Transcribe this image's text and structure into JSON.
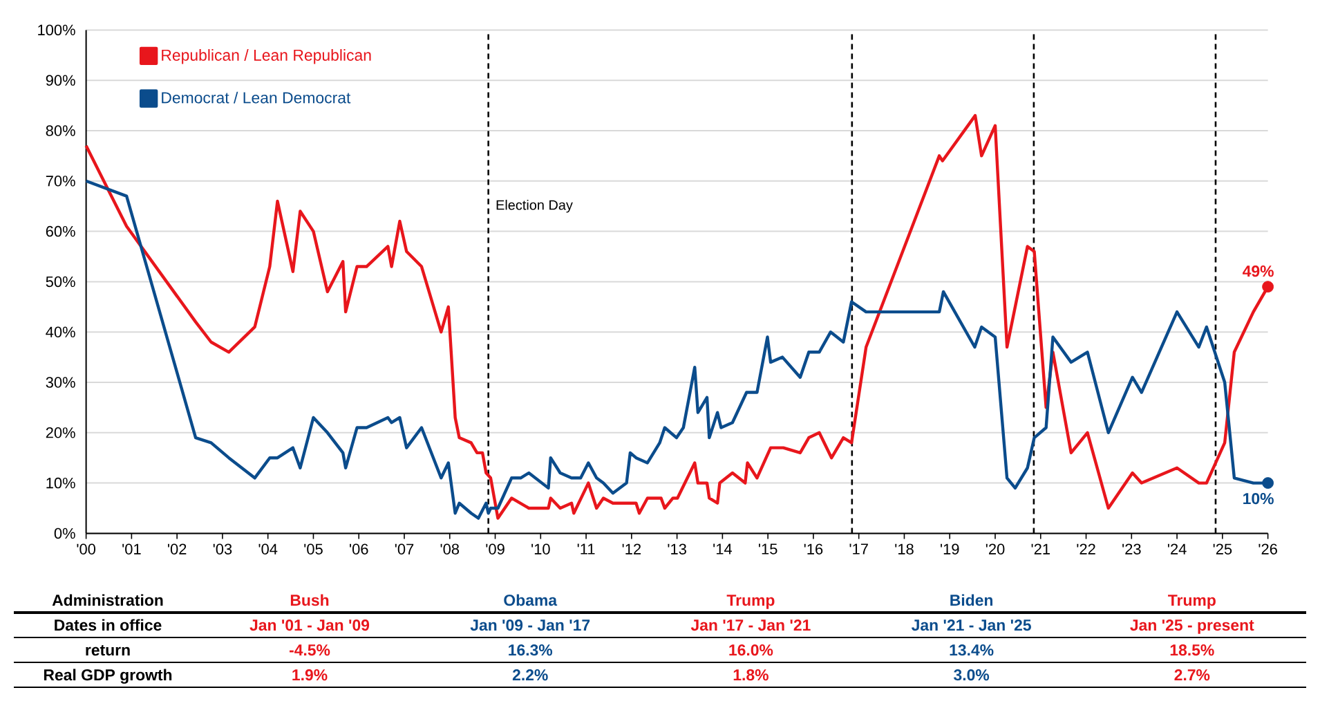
{
  "chart_data": {
    "type": "line",
    "series": [
      {
        "name": "Republican / Lean Republican",
        "color": "#e8161c",
        "x": [
          2000.0,
          2000.89,
          2002.41,
          2002.75,
          2003.14,
          2003.71,
          2004.04,
          2004.21,
          2004.55,
          2004.71,
          2005.0,
          2005.31,
          2005.65,
          2005.71,
          2005.96,
          2006.17,
          2006.64,
          2006.72,
          2006.9,
          2007.05,
          2007.38,
          2007.81,
          2007.97,
          2008.12,
          2008.21,
          2008.47,
          2008.6,
          2008.72,
          2008.8,
          2008.9,
          2009.06,
          2009.36,
          2009.74,
          2010.17,
          2010.22,
          2010.43,
          2010.68,
          2010.73,
          2011.05,
          2011.23,
          2011.38,
          2011.59,
          2012.1,
          2012.17,
          2012.35,
          2012.65,
          2012.73,
          2012.91,
          2013.01,
          2013.39,
          2013.46,
          2013.66,
          2013.71,
          2013.89,
          2013.94,
          2014.22,
          2014.5,
          2014.55,
          2014.76,
          2014.96,
          2015.06,
          2015.34,
          2015.71,
          2015.9,
          2016.13,
          2016.4,
          2016.66,
          2016.84,
          2017.16,
          2018.77,
          2018.84,
          2019.56,
          2019.7,
          2020.0,
          2020.26,
          2020.71,
          2020.86,
          2021.12,
          2021.27,
          2021.67,
          2022.03,
          2022.49,
          2023.02,
          2023.22,
          2024.0,
          2024.48,
          2024.65,
          2025.05,
          2025.26,
          2025.68,
          2026.0
        ],
        "values": [
          77,
          61,
          42,
          38,
          36,
          41,
          53,
          66,
          52,
          64,
          60,
          48,
          54,
          44,
          53,
          53,
          57,
          53,
          62,
          56,
          53,
          40,
          45,
          23,
          19,
          18,
          16,
          16,
          12,
          11,
          3,
          7,
          5,
          5,
          7,
          5,
          6,
          4,
          10,
          5,
          7,
          6,
          6,
          4,
          7,
          7,
          5,
          7,
          7,
          14,
          10,
          10,
          7,
          6,
          10,
          12,
          10,
          14,
          11,
          15,
          17,
          17,
          16,
          19,
          20,
          15,
          19,
          18,
          37,
          75,
          74,
          83,
          75,
          81,
          37,
          57,
          56,
          25,
          36,
          16,
          20,
          5,
          12,
          10,
          13,
          10,
          10,
          18,
          36,
          44,
          49
        ],
        "value_labels": [
          null,
          null,
          null,
          null,
          null,
          null,
          null,
          null,
          null,
          null,
          null,
          null,
          null,
          null,
          null,
          null,
          null,
          null,
          null,
          null,
          null,
          null,
          null,
          null,
          null,
          null,
          null,
          null,
          null,
          null,
          null,
          null,
          null,
          null,
          null,
          null,
          null,
          null,
          null,
          null,
          null,
          null,
          null,
          null,
          null,
          null,
          null,
          null,
          null,
          null,
          null,
          null,
          null,
          null,
          null,
          null,
          null,
          null,
          null,
          null,
          null,
          null,
          null,
          null,
          null,
          null,
          null,
          null,
          null,
          null,
          null,
          null,
          null,
          null,
          null,
          null,
          null,
          null,
          null,
          null,
          null,
          null,
          null,
          null,
          null,
          null,
          null,
          null,
          null,
          null,
          "49%"
        ]
      },
      {
        "name": "Democrat / Lean Democrat",
        "color": "#0b4c8c",
        "x": [
          2000.0,
          2000.89,
          2002.41,
          2002.75,
          2003.14,
          2003.71,
          2004.04,
          2004.21,
          2004.55,
          2004.71,
          2005.0,
          2005.31,
          2005.65,
          2005.71,
          2005.96,
          2006.17,
          2006.64,
          2006.72,
          2006.9,
          2007.05,
          2007.38,
          2007.81,
          2007.97,
          2008.12,
          2008.21,
          2008.47,
          2008.63,
          2008.8,
          2008.85,
          2008.9,
          2009.06,
          2009.36,
          2009.56,
          2009.74,
          2010.17,
          2010.22,
          2010.43,
          2010.68,
          2010.88,
          2011.05,
          2011.23,
          2011.38,
          2011.59,
          2011.89,
          2011.97,
          2012.1,
          2012.35,
          2012.62,
          2012.73,
          2012.99,
          2013.14,
          2013.39,
          2013.46,
          2013.66,
          2013.71,
          2013.89,
          2013.97,
          2014.22,
          2014.53,
          2014.76,
          2014.99,
          2015.06,
          2015.32,
          2015.71,
          2015.9,
          2016.13,
          2016.38,
          2016.66,
          2016.84,
          2017.16,
          2018.77,
          2018.86,
          2019.55,
          2019.7,
          2020.0,
          2020.26,
          2020.44,
          2020.71,
          2020.86,
          2021.12,
          2021.27,
          2021.67,
          2022.03,
          2022.49,
          2023.02,
          2023.22,
          2024.0,
          2024.48,
          2024.65,
          2025.05,
          2025.26,
          2025.68,
          2026.0
        ],
        "values": [
          70,
          67,
          19,
          18,
          15,
          11,
          15,
          15,
          17,
          13,
          23,
          20,
          16,
          13,
          21,
          21,
          23,
          22,
          23,
          17,
          21,
          11,
          14,
          4,
          6,
          4,
          3,
          6,
          4,
          5,
          5,
          11,
          11,
          12,
          9,
          15,
          12,
          11,
          11,
          14,
          11,
          10,
          8,
          10,
          16,
          15,
          14,
          18,
          21,
          19,
          21,
          33,
          24,
          27,
          19,
          24,
          21,
          22,
          28,
          28,
          39,
          34,
          35,
          31,
          36,
          36,
          40,
          38,
          46,
          44,
          44,
          48,
          37,
          41,
          39,
          11,
          9,
          13,
          19,
          21,
          39,
          34,
          36,
          20,
          31,
          28,
          44,
          37,
          41,
          30,
          11,
          10,
          10
        ],
        "value_labels": [
          null,
          null,
          null,
          null,
          null,
          null,
          null,
          null,
          null,
          null,
          null,
          null,
          null,
          null,
          null,
          null,
          null,
          null,
          null,
          null,
          null,
          null,
          null,
          null,
          null,
          null,
          null,
          null,
          null,
          null,
          null,
          null,
          null,
          null,
          null,
          null,
          null,
          null,
          null,
          null,
          null,
          null,
          null,
          null,
          null,
          null,
          null,
          null,
          null,
          null,
          null,
          null,
          null,
          null,
          null,
          null,
          null,
          null,
          null,
          null,
          null,
          null,
          null,
          null,
          null,
          null,
          null,
          null,
          null,
          null,
          null,
          null,
          null,
          null,
          null,
          null,
          null,
          null,
          null,
          null,
          null,
          null,
          null,
          null,
          null,
          null,
          null,
          null,
          null,
          null,
          null,
          null,
          "10%"
        ]
      }
    ],
    "xlim": [
      2000,
      2026
    ],
    "xticks": [
      {
        "value": 2000,
        "label": "'00"
      },
      {
        "value": 2001,
        "label": "'01"
      },
      {
        "value": 2002,
        "label": "'02"
      },
      {
        "value": 2003,
        "label": "'03"
      },
      {
        "value": 2004,
        "label": "'04"
      },
      {
        "value": 2005,
        "label": "'05"
      },
      {
        "value": 2006,
        "label": "'06"
      },
      {
        "value": 2007,
        "label": "'07"
      },
      {
        "value": 2008,
        "label": "'08"
      },
      {
        "value": 2009,
        "label": "'09"
      },
      {
        "value": 2010,
        "label": "'10"
      },
      {
        "value": 2011,
        "label": "'11"
      },
      {
        "value": 2012,
        "label": "'12"
      },
      {
        "value": 2013,
        "label": "'13"
      },
      {
        "value": 2014,
        "label": "'14"
      },
      {
        "value": 2015,
        "label": "'15"
      },
      {
        "value": 2016,
        "label": "'16"
      },
      {
        "value": 2017,
        "label": "'17"
      },
      {
        "value": 2018,
        "label": "'18"
      },
      {
        "value": 2019,
        "label": "'19"
      },
      {
        "value": 2020,
        "label": "'20"
      },
      {
        "value": 2021,
        "label": "'21"
      },
      {
        "value": 2022,
        "label": "'22"
      },
      {
        "value": 2023,
        "label": "'23"
      },
      {
        "value": 2024,
        "label": "'24"
      },
      {
        "value": 2025,
        "label": "'25"
      },
      {
        "value": 2026,
        "label": "'26"
      }
    ],
    "ylim": [
      0,
      100
    ],
    "yticks": [
      {
        "value": 0,
        "label": "0%"
      },
      {
        "value": 10,
        "label": "10%"
      },
      {
        "value": 20,
        "label": "20%"
      },
      {
        "value": 30,
        "label": "30%"
      },
      {
        "value": 40,
        "label": "40%"
      },
      {
        "value": 50,
        "label": "50%"
      },
      {
        "value": 60,
        "label": "60%"
      },
      {
        "value": 70,
        "label": "70%"
      },
      {
        "value": 80,
        "label": "80%"
      },
      {
        "value": 90,
        "label": "90%"
      },
      {
        "value": 100,
        "label": "100%"
      }
    ],
    "grid": "y",
    "legend": "top left",
    "ref_lines": [
      {
        "axis": "x",
        "value": 2008.85,
        "label": "Election Day",
        "color": "#000000",
        "line_style": "dashed"
      },
      {
        "axis": "x",
        "value": 2016.85,
        "color": "#000000",
        "line_style": "dashed"
      },
      {
        "axis": "x",
        "value": 2020.85,
        "color": "#000000",
        "line_style": "dashed"
      },
      {
        "axis": "x",
        "value": 2024.85,
        "color": "#000000",
        "line_style": "dashed"
      }
    ],
    "annotations": [
      "Administration",
      "Bush",
      "Obama",
      "Trump",
      "Biden",
      "Trump",
      "Dates in office",
      "Jan '01 - Jan '09",
      "Jan '09 - Jan '17",
      "Jan '17 - Jan '21",
      "Jan '21 - Jan '25",
      "Jan '25 - present",
      "return",
      "-4.5%",
      "16.3%",
      "16.0%",
      "13.4%",
      "18.5%",
      "Real GDP growth",
      "1.9%",
      "2.2%",
      "1.8%",
      "3.0%",
      "2.7%"
    ]
  }
}
